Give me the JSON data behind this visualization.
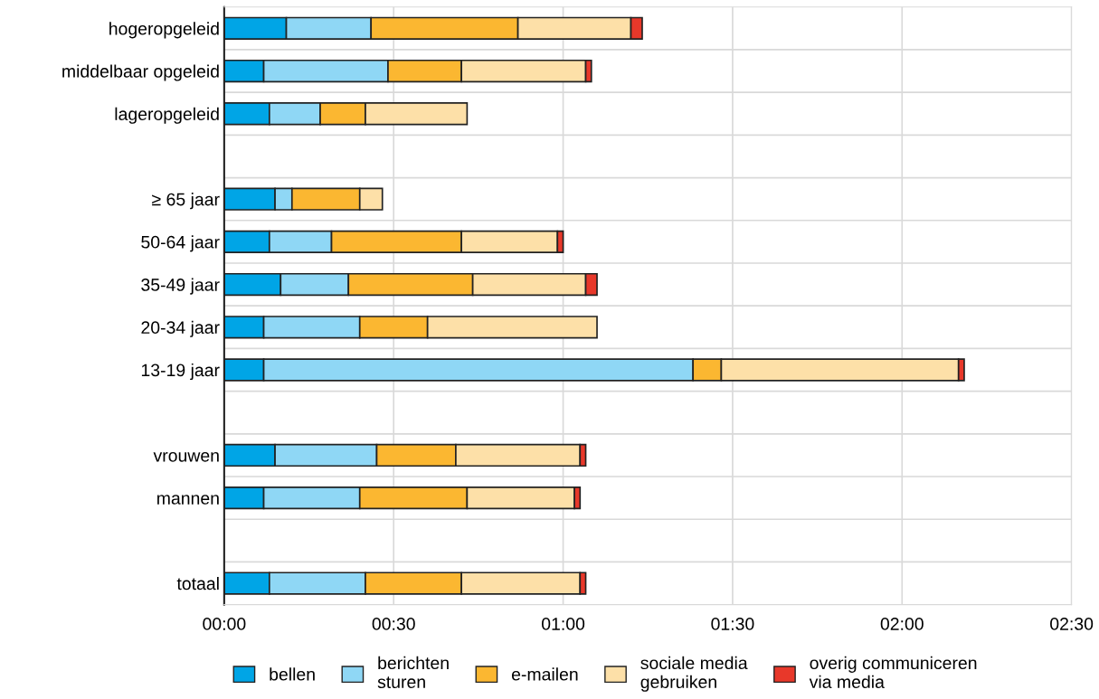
{
  "chart_data": {
    "type": "bar",
    "orientation": "horizontal",
    "stacked": true,
    "categories": [
      "hogeropgeleid",
      "middelbaar opgeleid",
      "lageropgeleid",
      null,
      "≥ 65 jaar",
      "50-64 jaar",
      "35-49 jaar",
      "20-34 jaar",
      "13-19 jaar",
      null,
      "vrouwen",
      "mannen",
      null,
      "totaal"
    ],
    "series": [
      {
        "name": "bellen",
        "color": "#00a5e6",
        "values": [
          11,
          7,
          8,
          null,
          9,
          8,
          10,
          7,
          7,
          null,
          9,
          7,
          null,
          8
        ]
      },
      {
        "name": "berichten sturen",
        "color": "#8fd7f5",
        "values": [
          15,
          22,
          9,
          null,
          3,
          11,
          12,
          17,
          76,
          null,
          18,
          17,
          null,
          17
        ]
      },
      {
        "name": "e-mailen",
        "color": "#fbb731",
        "values": [
          26,
          13,
          8,
          null,
          12,
          23,
          22,
          12,
          5,
          null,
          14,
          19,
          null,
          17
        ]
      },
      {
        "name": "sociale media gebruiken",
        "color": "#fde0a8",
        "values": [
          20,
          22,
          18,
          null,
          4,
          17,
          20,
          30,
          42,
          null,
          22,
          19,
          null,
          21
        ]
      },
      {
        "name": "overig communiceren via media",
        "color": "#e8382a",
        "values": [
          2,
          1,
          null,
          null,
          null,
          1,
          2,
          null,
          1,
          null,
          1,
          1,
          null,
          1
        ]
      }
    ],
    "xlim": [
      0,
      150
    ],
    "xticks": [
      {
        "value": 0,
        "label": "00:00"
      },
      {
        "value": 30,
        "label": "00:30"
      },
      {
        "value": 60,
        "label": "01:00"
      },
      {
        "value": 90,
        "label": "01:30"
      },
      {
        "value": 120,
        "label": "02:00"
      },
      {
        "value": 150,
        "label": "02:30"
      }
    ],
    "grid": true,
    "legend": "bottom"
  }
}
